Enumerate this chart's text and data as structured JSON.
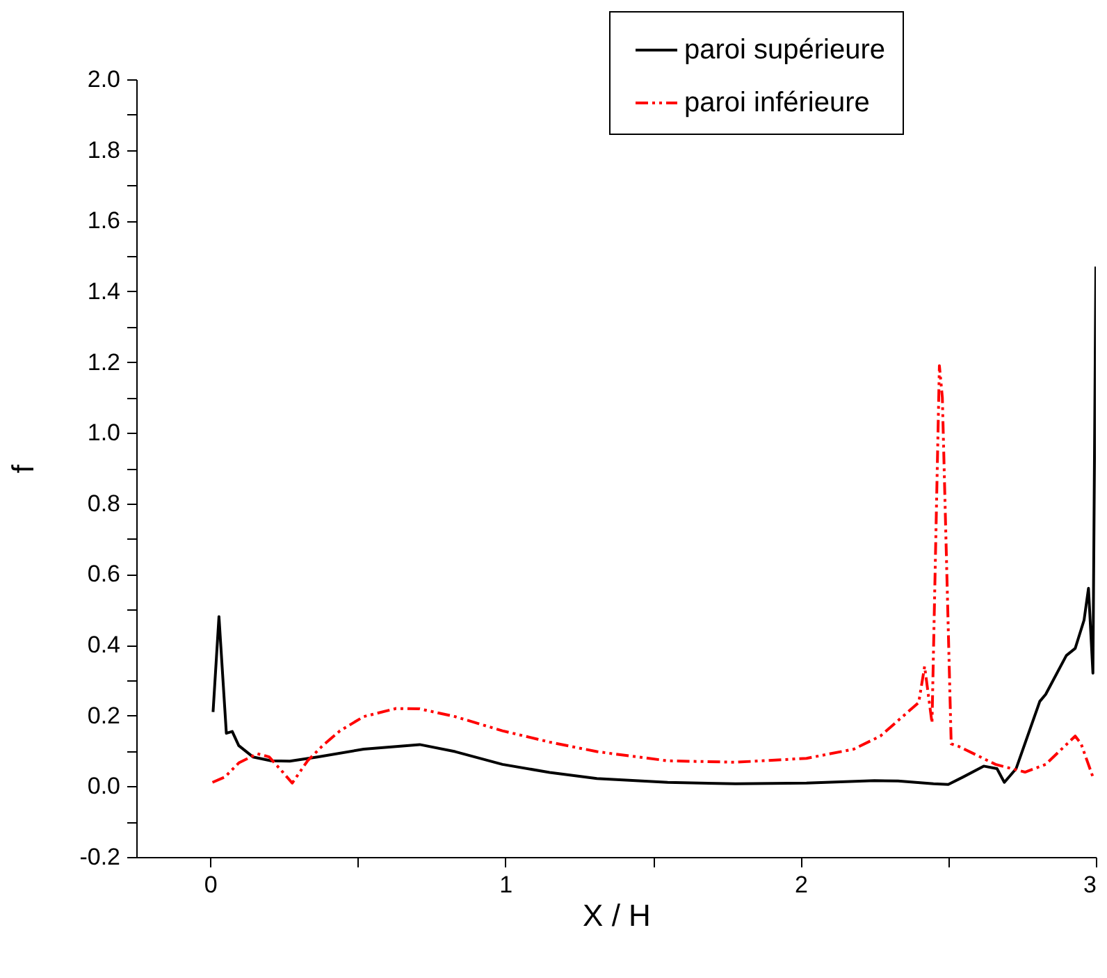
{
  "chart_data": {
    "type": "line",
    "xlabel": "X / H",
    "ylabel": "f",
    "xlim": [
      -0.25,
      3
    ],
    "ylim": [
      -0.2,
      2
    ],
    "xticks": [
      0,
      {
        "value": 0.5,
        "label": null
      },
      1,
      {
        "value": 1.5,
        "label": null
      },
      2,
      {
        "value": 2.5,
        "label": null
      },
      3
    ],
    "yticks": [
      {
        "value": -0.2,
        "label": "-0.2"
      },
      {
        "value": -0.1,
        "label": null
      },
      {
        "value": 0,
        "label": "0.0"
      },
      {
        "value": 0.1,
        "label": null
      },
      {
        "value": 0.2,
        "label": "0.2"
      },
      {
        "value": 0.3,
        "label": null
      },
      {
        "value": 0.4,
        "label": "0.4"
      },
      {
        "value": 0.5,
        "label": null
      },
      {
        "value": 0.6,
        "label": "0.6"
      },
      {
        "value": 0.7,
        "label": null
      },
      {
        "value": 0.8,
        "label": "0.8"
      },
      {
        "value": 0.9,
        "label": null
      },
      {
        "value": 1,
        "label": "1.0"
      },
      {
        "value": 1.1,
        "label": null
      },
      {
        "value": 1.2,
        "label": "1.2"
      },
      {
        "value": 1.3,
        "label": null
      },
      {
        "value": 1.4,
        "label": "1.4"
      },
      {
        "value": 1.5,
        "label": null
      },
      {
        "value": 1.6,
        "label": "1.6"
      },
      {
        "value": 1.7,
        "label": null
      },
      {
        "value": 1.8,
        "label": "1.8"
      },
      {
        "value": 1.9,
        "label": null
      },
      {
        "value": 2,
        "label": "2.0"
      }
    ],
    "grid": false,
    "legend": "top right",
    "marker": "none",
    "series": [
      {
        "name": "paroi supérieure",
        "color": "#000000",
        "line_style": "solid",
        "x": [
          0.01,
          0.03,
          0.055,
          0.075,
          0.097,
          0.145,
          0.207,
          0.27,
          0.364,
          0.52,
          0.71,
          0.83,
          0.99,
          1.15,
          1.31,
          1.55,
          1.78,
          2.02,
          2.25,
          2.33,
          2.45,
          2.5,
          2.55,
          2.62,
          2.665,
          2.69,
          2.73,
          2.81,
          2.83,
          2.9,
          2.93,
          2.96,
          2.975,
          2.99,
          3.0
        ],
        "values": [
          0.21,
          0.48,
          0.15,
          0.155,
          0.115,
          0.083,
          0.072,
          0.071,
          0.083,
          0.105,
          0.118,
          0.098,
          0.062,
          0.039,
          0.022,
          0.011,
          0.007,
          0.009,
          0.016,
          0.015,
          0.007,
          0.005,
          0.026,
          0.057,
          0.05,
          0.011,
          0.05,
          0.24,
          0.26,
          0.37,
          0.39,
          0.47,
          0.56,
          0.32,
          1.47
        ]
      },
      {
        "name": "paroi inférieure",
        "color": "#ff0000",
        "line_style": "dashed",
        "x": [
          0.008,
          0.05,
          0.097,
          0.16,
          0.2,
          0.24,
          0.278,
          0.33,
          0.38,
          0.44,
          0.52,
          0.63,
          0.71,
          0.83,
          0.99,
          1.15,
          1.31,
          1.55,
          1.78,
          2.02,
          2.18,
          2.27,
          2.4,
          2.42,
          2.445,
          2.47,
          2.48,
          2.51,
          2.535,
          2.66,
          2.76,
          2.83,
          2.93,
          2.95,
          2.99
        ],
        "values": [
          0.011,
          0.026,
          0.066,
          0.092,
          0.083,
          0.046,
          0.009,
          0.072,
          0.114,
          0.157,
          0.197,
          0.22,
          0.219,
          0.197,
          0.157,
          0.125,
          0.098,
          0.072,
          0.068,
          0.079,
          0.105,
          0.142,
          0.237,
          0.339,
          0.179,
          1.19,
          1.1,
          0.12,
          0.113,
          0.062,
          0.04,
          0.062,
          0.142,
          0.12,
          0.026
        ]
      }
    ]
  }
}
